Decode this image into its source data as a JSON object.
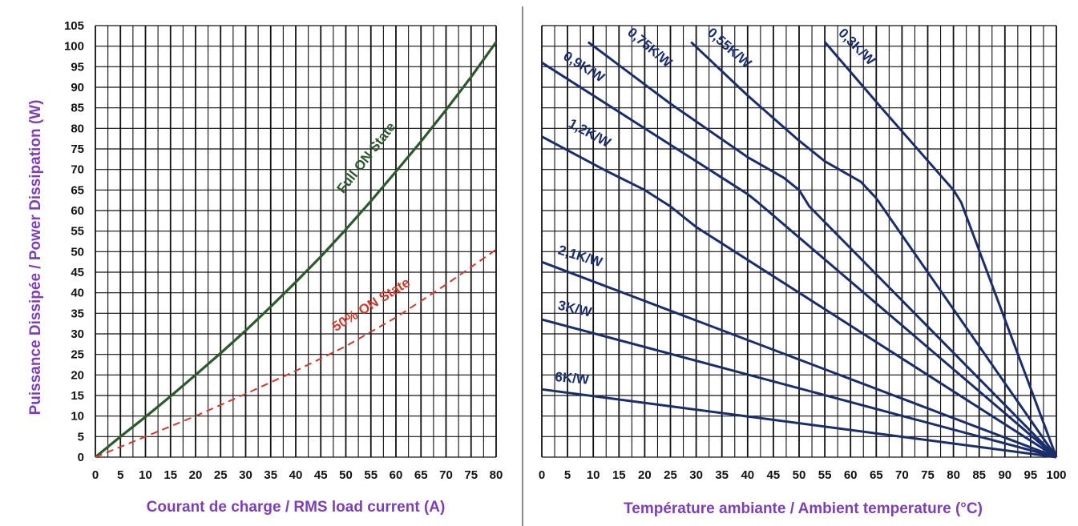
{
  "colors": {
    "axis_label": "#7b3fb6",
    "grid": "#111111",
    "full_on": "#2d5a2d",
    "half_on": "#cc3b2c",
    "curve": "#1a2e6b",
    "divider": "#8a8a8a"
  },
  "chart_data": [
    {
      "type": "line",
      "xlabel": "Courant de charge / RMS load current (A)",
      "ylabel": "Puissance Dissipée / Power Dissipation (W)",
      "xlim": [
        0,
        80
      ],
      "ylim": [
        0,
        105
      ],
      "x_ticks": [
        0,
        5,
        10,
        15,
        20,
        25,
        30,
        35,
        40,
        45,
        50,
        55,
        60,
        65,
        70,
        75,
        80
      ],
      "y_ticks": [
        0,
        5,
        10,
        15,
        20,
        25,
        30,
        35,
        40,
        45,
        50,
        55,
        60,
        65,
        70,
        75,
        80,
        85,
        90,
        95,
        100,
        105
      ],
      "grid": true,
      "series": [
        {
          "name": "Full ON State",
          "color": "#2d5a2d",
          "style": "solid",
          "x": [
            0,
            5,
            10,
            15,
            20,
            25,
            30,
            35,
            40,
            45,
            50,
            55,
            60,
            65,
            70,
            75,
            80
          ],
          "y": [
            0,
            5,
            9.8,
            14.8,
            20,
            25.3,
            30.8,
            36.6,
            42.6,
            48.8,
            55.4,
            62.3,
            69.5,
            76.8,
            84.5,
            92.5,
            101
          ]
        },
        {
          "name": "50% ON State",
          "color": "#cc3b2c",
          "style": "dashed",
          "x": [
            0,
            10,
            20,
            30,
            40,
            50,
            60,
            70,
            80
          ],
          "y": [
            0,
            5,
            10,
            15.4,
            21,
            27,
            34,
            42,
            50.5
          ]
        }
      ]
    },
    {
      "type": "line",
      "xlabel": "Température ambiante / Ambient temperature (°C)",
      "ylabel": "",
      "xlim": [
        0,
        100
      ],
      "ylim": [
        0,
        105
      ],
      "x_ticks": [
        0,
        5,
        10,
        15,
        20,
        25,
        30,
        35,
        40,
        45,
        50,
        55,
        60,
        65,
        70,
        75,
        80,
        85,
        90,
        95,
        100
      ],
      "grid": true,
      "series": [
        {
          "name": "0,3K/W",
          "color": "#1a2e6b",
          "x": [
            55,
            66,
            80,
            81.5,
            100
          ],
          "y": [
            101,
            85,
            65,
            62,
            0
          ]
        },
        {
          "name": "0,55K/W",
          "color": "#1a2e6b",
          "x": [
            29,
            40,
            50,
            55,
            62,
            65,
            100
          ],
          "y": [
            101,
            88,
            77,
            72,
            67,
            63,
            0
          ]
        },
        {
          "name": "0,75K/W",
          "color": "#1a2e6b",
          "x": [
            9,
            25,
            40,
            47,
            50,
            52,
            100
          ],
          "y": [
            101,
            86,
            73,
            68,
            65,
            61,
            0
          ]
        },
        {
          "name": "0,9K/W",
          "color": "#1a2e6b",
          "x": [
            0,
            20,
            35,
            40,
            42,
            100
          ],
          "y": [
            96,
            80,
            68,
            64,
            62,
            0
          ]
        },
        {
          "name": "1,2K/W",
          "color": "#1a2e6b",
          "x": [
            0,
            12,
            20,
            25,
            30,
            100
          ],
          "y": [
            78,
            70,
            65,
            61,
            56,
            0
          ]
        },
        {
          "name": "2,1K/W",
          "color": "#1a2e6b",
          "x": [
            0,
            100
          ],
          "y": [
            47.5,
            0
          ]
        },
        {
          "name": "3K/W",
          "color": "#1a2e6b",
          "x": [
            0,
            100
          ],
          "y": [
            33.5,
            0
          ]
        },
        {
          "name": "6K/W",
          "color": "#1a2e6b",
          "x": [
            0,
            100
          ],
          "y": [
            16.5,
            0
          ]
        }
      ]
    }
  ]
}
